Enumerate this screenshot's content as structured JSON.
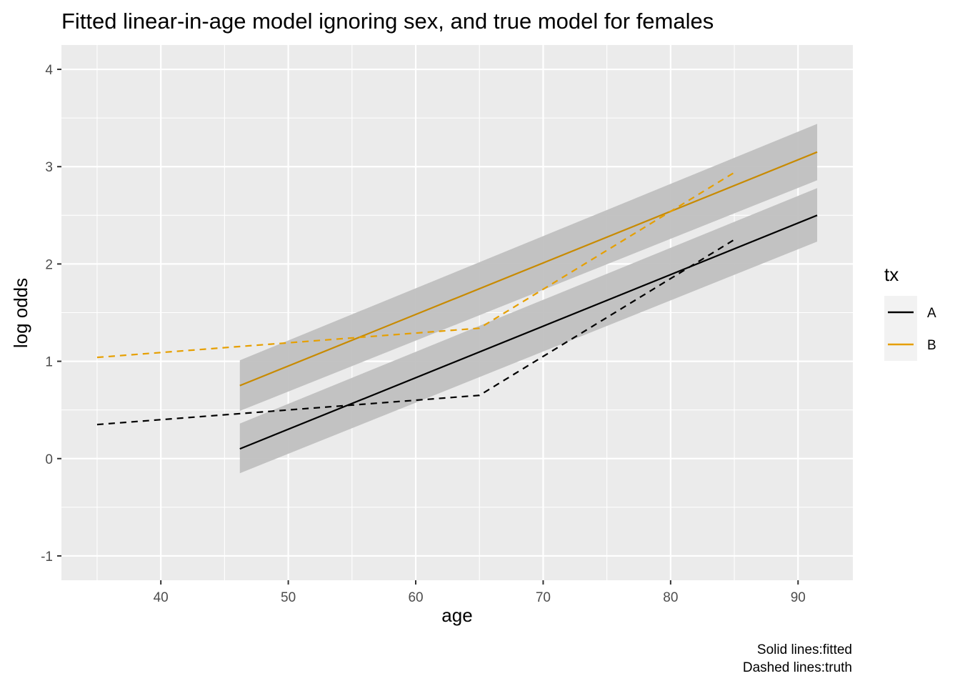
{
  "chart_data": {
    "type": "line",
    "title": "Fitted linear-in-age model ignoring sex, and true model for females",
    "xlabel": "age",
    "ylabel": "log odds",
    "xlim": [
      32.2,
      94.3
    ],
    "ylim": [
      -1.25,
      4.25
    ],
    "x_ticks": [
      40,
      50,
      60,
      70,
      80,
      90
    ],
    "y_ticks": [
      -1,
      0,
      1,
      2,
      3,
      4
    ],
    "grid": true,
    "legend": {
      "title": "tx",
      "placement": "right",
      "entries": [
        {
          "label": "A",
          "color": "#000000"
        },
        {
          "label": "B",
          "color": "#E69F00"
        }
      ]
    },
    "caption": [
      "Solid lines:fitted",
      "Dashed lines:truth"
    ],
    "series": [
      {
        "group": "A",
        "kind": "fitted",
        "line_style": "solid",
        "color": "#000000",
        "x": [
          46.2,
          91.5
        ],
        "y": [
          0.1,
          2.5
        ],
        "ci_lower": [
          -0.15,
          2.23
        ],
        "ci_upper": [
          0.36,
          2.78
        ]
      },
      {
        "group": "B",
        "kind": "fitted",
        "line_style": "solid",
        "color": "#C88A00",
        "x": [
          46.2,
          91.5
        ],
        "y": [
          0.75,
          3.15
        ],
        "ci_lower": [
          0.49,
          2.86
        ],
        "ci_upper": [
          1.01,
          3.44
        ]
      },
      {
        "group": "A",
        "kind": "truth",
        "line_style": "dashed",
        "color": "#000000",
        "x": [
          35,
          65,
          85
        ],
        "y": [
          0.35,
          0.65,
          2.25
        ]
      },
      {
        "group": "B",
        "kind": "truth",
        "line_style": "dashed",
        "color": "#E69F00",
        "x": [
          35,
          65,
          85
        ],
        "y": [
          1.04,
          1.34,
          2.94
        ]
      }
    ],
    "ribbon_color": "#BEBEBE",
    "panel_background": "#EBEBEB"
  }
}
